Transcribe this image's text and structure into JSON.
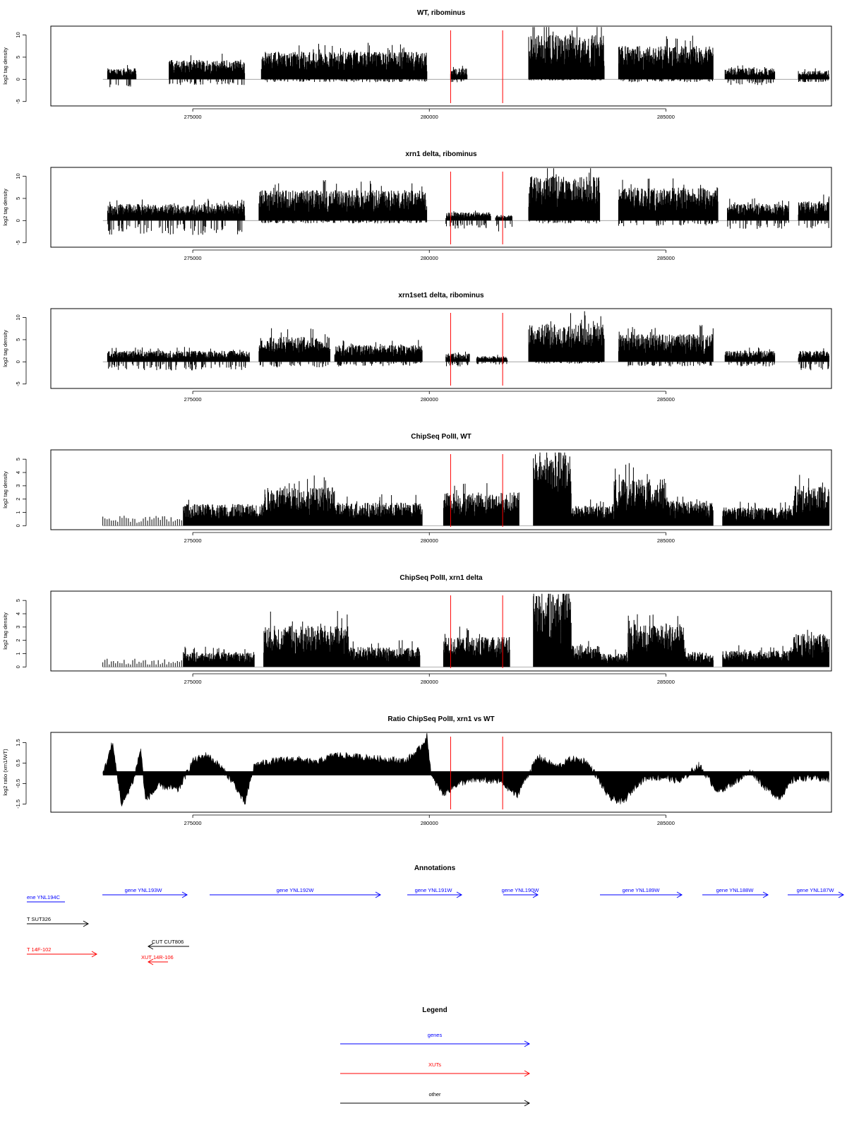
{
  "colors": {
    "bars": "#000000",
    "vline": "#ff0000",
    "gene": "#0000ff",
    "xut": "#ff0000",
    "other": "#000000",
    "zero_line": "#999999"
  },
  "chart_data": [
    {
      "type": "bar",
      "title": "WT, ribominus",
      "ylabel": "log2 tag density",
      "xlim": [
        272000,
        288500
      ],
      "ylim": [
        -6,
        12
      ],
      "yticks": [
        -5,
        0,
        5,
        10
      ],
      "xticks": [
        275000,
        280000,
        285000
      ],
      "vlines": [
        280450,
        281550
      ],
      "segments": [
        {
          "x": [
            273200,
            273800
          ],
          "level": 2,
          "neg": 1.5
        },
        {
          "x": [
            274500,
            276100
          ],
          "level": 3.5,
          "neg": 1
        },
        {
          "x": [
            276450,
            279950
          ],
          "level": 5,
          "neg": 0.5
        },
        {
          "x": [
            280450,
            280800
          ],
          "level": 2,
          "neg": 0.5
        },
        {
          "x": [
            282100,
            283700
          ],
          "level": 8,
          "neg": 0.2
        },
        {
          "x": [
            284000,
            286000
          ],
          "level": 6,
          "neg": 0.5
        },
        {
          "x": [
            286250,
            287300
          ],
          "level": 2,
          "neg": 1
        },
        {
          "x": [
            287800,
            288450
          ],
          "level": 1.5,
          "neg": 0.5
        }
      ]
    },
    {
      "type": "bar",
      "title": "xrn1 delta, ribominus",
      "ylabel": "log2 tag density",
      "xlim": [
        272000,
        288500
      ],
      "ylim": [
        -6,
        12
      ],
      "yticks": [
        -5,
        0,
        5,
        10
      ],
      "xticks": [
        275000,
        280000,
        285000
      ],
      "vlines": [
        280450,
        281550
      ],
      "segments": [
        {
          "x": [
            273200,
            276100
          ],
          "level": 3,
          "neg": 2.5
        },
        {
          "x": [
            276400,
            279950
          ],
          "level": 5.5,
          "neg": 0.5
        },
        {
          "x": [
            280350,
            281300
          ],
          "level": 1.5,
          "neg": 1.5
        },
        {
          "x": [
            281400,
            281750
          ],
          "level": 1,
          "neg": 2
        },
        {
          "x": [
            282100,
            283600
          ],
          "level": 8,
          "neg": 0.5
        },
        {
          "x": [
            284000,
            286100
          ],
          "level": 6,
          "neg": 1
        },
        {
          "x": [
            286300,
            287600
          ],
          "level": 3,
          "neg": 1.5
        },
        {
          "x": [
            287800,
            288450
          ],
          "level": 3.5,
          "neg": 1.5
        }
      ]
    },
    {
      "type": "bar",
      "title": "xrn1set1 delta, ribominus",
      "ylabel": "log2 tag density",
      "xlim": [
        272000,
        288500
      ],
      "ylim": [
        -6,
        12
      ],
      "yticks": [
        -5,
        0,
        5,
        10
      ],
      "xticks": [
        275000,
        280000,
        285000
      ],
      "vlines": [
        280450,
        281550
      ],
      "segments": [
        {
          "x": [
            273200,
            276200
          ],
          "level": 2,
          "neg": 1.5
        },
        {
          "x": [
            276400,
            277900
          ],
          "level": 4.5,
          "neg": 1
        },
        {
          "x": [
            278000,
            279850
          ],
          "level": 3,
          "neg": 0.8
        },
        {
          "x": [
            280350,
            280850
          ],
          "level": 1.5,
          "neg": 0.8
        },
        {
          "x": [
            281000,
            281650
          ],
          "level": 1,
          "neg": 0.5
        },
        {
          "x": [
            282100,
            283700
          ],
          "level": 7,
          "neg": 0.3
        },
        {
          "x": [
            284000,
            286000
          ],
          "level": 5,
          "neg": 0.8
        },
        {
          "x": [
            286250,
            287300
          ],
          "level": 2,
          "neg": 0.8
        },
        {
          "x": [
            287800,
            288450
          ],
          "level": 2,
          "neg": 1.5
        }
      ]
    },
    {
      "type": "bar",
      "title": "ChipSeq PolII, WT",
      "ylabel": "log2 tag density",
      "xlim": [
        272000,
        288500
      ],
      "ylim": [
        -0.3,
        5.7
      ],
      "yticks": [
        0,
        1,
        2,
        3,
        4,
        5
      ],
      "xticks": [
        275000,
        280000,
        285000
      ],
      "vlines": [
        280450,
        281550
      ],
      "segments": [
        {
          "x": [
            273100,
            274800
          ],
          "level": 0.6,
          "neg": 0,
          "sparse": true
        },
        {
          "x": [
            274800,
            276500
          ],
          "level": 1.3,
          "neg": 0
        },
        {
          "x": [
            276500,
            278000
          ],
          "level": 2.3,
          "neg": 0
        },
        {
          "x": [
            278000,
            279850
          ],
          "level": 1.4,
          "neg": 0
        },
        {
          "x": [
            280300,
            281900
          ],
          "level": 2,
          "neg": 0
        },
        {
          "x": [
            282200,
            283000
          ],
          "level": 4.5,
          "neg": 0
        },
        {
          "x": [
            283000,
            283900
          ],
          "level": 1.2,
          "neg": 0
        },
        {
          "x": [
            283900,
            285000
          ],
          "level": 2.8,
          "neg": 0
        },
        {
          "x": [
            285000,
            286000
          ],
          "level": 1.5,
          "neg": 0
        },
        {
          "x": [
            286200,
            287700
          ],
          "level": 1.1,
          "neg": 0
        },
        {
          "x": [
            287700,
            288450
          ],
          "level": 2.4,
          "neg": 0
        }
      ]
    },
    {
      "type": "bar",
      "title": "ChipSeq PolII, xrn1 delta",
      "ylabel": "log2 tag density",
      "xlim": [
        272000,
        288500
      ],
      "ylim": [
        -0.3,
        5.7
      ],
      "yticks": [
        0,
        1,
        2,
        3,
        4,
        5
      ],
      "xticks": [
        275000,
        280000,
        285000
      ],
      "vlines": [
        280450,
        281550
      ],
      "segments": [
        {
          "x": [
            273100,
            274800
          ],
          "level": 0.5,
          "neg": 0,
          "sparse": true
        },
        {
          "x": [
            274800,
            276300
          ],
          "level": 0.9,
          "neg": 0
        },
        {
          "x": [
            276500,
            278300
          ],
          "level": 2.5,
          "neg": 0
        },
        {
          "x": [
            278300,
            279800
          ],
          "level": 1.2,
          "neg": 0
        },
        {
          "x": [
            280300,
            281700
          ],
          "level": 1.8,
          "neg": 0
        },
        {
          "x": [
            282200,
            283000
          ],
          "level": 4.6,
          "neg": 0
        },
        {
          "x": [
            283000,
            283600
          ],
          "level": 1.3,
          "neg": 0
        },
        {
          "x": [
            283600,
            284200
          ],
          "level": 0.8,
          "neg": 0
        },
        {
          "x": [
            284200,
            285400
          ],
          "level": 2.6,
          "neg": 0
        },
        {
          "x": [
            285400,
            286000
          ],
          "level": 0.9,
          "neg": 0
        },
        {
          "x": [
            286200,
            287700
          ],
          "level": 1,
          "neg": 0
        },
        {
          "x": [
            287700,
            288450
          ],
          "level": 2,
          "neg": 0
        }
      ]
    },
    {
      "type": "area",
      "title": "Ratio ChipSeq PolII, xrn1 vs WT",
      "ylabel": "log2 ratio (xrn1/WT)",
      "xlim": [
        272000,
        288500
      ],
      "ylim": [
        -1.9,
        2.0
      ],
      "yticks": [
        -1.5,
        -0.5,
        0.5,
        1.5
      ],
      "xticks": [
        275000,
        280000,
        285000
      ],
      "vlines": [
        280450,
        281550
      ],
      "profile": [
        [
          273100,
          -0.1
        ],
        [
          273300,
          1.5
        ],
        [
          273500,
          -1.6
        ],
        [
          273750,
          -0.3
        ],
        [
          273900,
          1.2
        ],
        [
          274000,
          -1.3
        ],
        [
          274300,
          -0.6
        ],
        [
          274700,
          -0.8
        ],
        [
          275000,
          0.6
        ],
        [
          275300,
          0.9
        ],
        [
          275600,
          0.3
        ],
        [
          275900,
          -0.6
        ],
        [
          276100,
          -1.5
        ],
        [
          276300,
          0.4
        ],
        [
          276700,
          0.6
        ],
        [
          277200,
          0.7
        ],
        [
          277600,
          0.5
        ],
        [
          278000,
          0.9
        ],
        [
          278500,
          0.8
        ],
        [
          279000,
          0.7
        ],
        [
          279500,
          0.6
        ],
        [
          279800,
          1.2
        ],
        [
          279950,
          1.8
        ],
        [
          280050,
          -0.2
        ],
        [
          280300,
          -1.0
        ],
        [
          280600,
          -0.5
        ],
        [
          281000,
          -0.3
        ],
        [
          281500,
          -0.4
        ],
        [
          281850,
          -1.1
        ],
        [
          282000,
          -0.4
        ],
        [
          282300,
          0.8
        ],
        [
          282700,
          0.3
        ],
        [
          283000,
          0.7
        ],
        [
          283300,
          0.6
        ],
        [
          283500,
          0.0
        ],
        [
          283800,
          -1.2
        ],
        [
          284100,
          -1.4
        ],
        [
          284400,
          -0.5
        ],
        [
          284600,
          -0.2
        ],
        [
          285000,
          -0.2
        ],
        [
          285300,
          -0.4
        ],
        [
          285700,
          0.4
        ],
        [
          286100,
          -0.9
        ],
        [
          286400,
          -0.5
        ],
        [
          286800,
          0.1
        ],
        [
          287100,
          -0.7
        ],
        [
          287400,
          -1.2
        ],
        [
          287700,
          -0.3
        ],
        [
          288000,
          -0.2
        ],
        [
          288450,
          -0.3
        ]
      ]
    }
  ],
  "annotations": {
    "title": "Annotations",
    "items": [
      {
        "label": "ene YNL194C",
        "kind": "gene",
        "dir": "none"
      },
      {
        "label": "gene YNL193W",
        "kind": "gene",
        "dir": "right"
      },
      {
        "label": "gene YNL192W",
        "kind": "gene",
        "dir": "right"
      },
      {
        "label": "gene YNL191W",
        "kind": "gene",
        "dir": "right"
      },
      {
        "label": "gene YNL190W",
        "kind": "gene",
        "dir": "right"
      },
      {
        "label": "gene YNL189W",
        "kind": "gene",
        "dir": "right"
      },
      {
        "label": "gene YNL188W",
        "kind": "gene",
        "dir": "right"
      },
      {
        "label": "gene YNL187W",
        "kind": "gene",
        "dir": "right"
      },
      {
        "label": "T SUT326",
        "kind": "other",
        "dir": "right"
      },
      {
        "label": "CUT CUT806",
        "kind": "other",
        "dir": "left"
      },
      {
        "label": "T 14F-102",
        "kind": "xut",
        "dir": "right"
      },
      {
        "label": "XUT 14R-106",
        "kind": "xut",
        "dir": "left"
      }
    ]
  },
  "legend": {
    "title": "Legend",
    "items": [
      {
        "label": "genes",
        "kind": "gene"
      },
      {
        "label": "XUTs",
        "kind": "xut"
      },
      {
        "label": "other",
        "kind": "other"
      }
    ]
  }
}
